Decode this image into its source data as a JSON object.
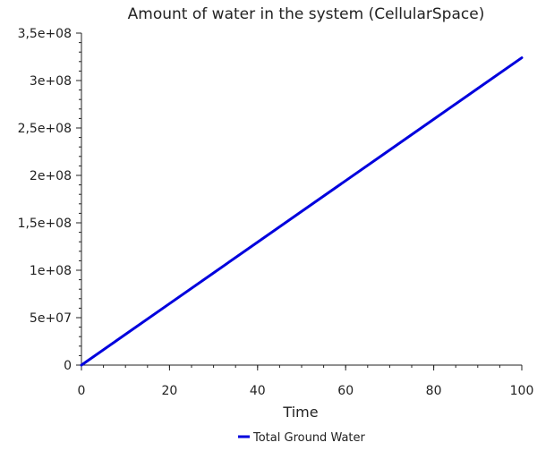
{
  "chart_data": {
    "type": "line",
    "title": "Amount of water in the system (CellularSpace)",
    "xlabel": "Time",
    "ylabel": "",
    "xlim": [
      0,
      100
    ],
    "ylim": [
      0,
      350000000
    ],
    "x_ticks": [
      0,
      20,
      40,
      60,
      80,
      100
    ],
    "x_tick_labels": [
      "0",
      "20",
      "40",
      "60",
      "80",
      "100"
    ],
    "x_minor_step": 5,
    "y_ticks": [
      0,
      50000000,
      100000000,
      150000000,
      200000000,
      250000000,
      300000000,
      350000000
    ],
    "y_tick_labels": [
      "0",
      "5e+07",
      "1e+08",
      "1,5e+08",
      "2e+08",
      "2,5e+08",
      "3e+08",
      "3,5e+08"
    ],
    "y_minor_step": 10000000,
    "grid": false,
    "legend_position": "bottom-center",
    "series": [
      {
        "name": "Total Ground Water",
        "color": "#0000dd",
        "x": [
          0,
          10,
          20,
          30,
          40,
          50,
          60,
          70,
          80,
          90,
          100
        ],
        "y": [
          0,
          32400000,
          64800000,
          97200000,
          129600000,
          162000000,
          194400000,
          226800000,
          259200000,
          291600000,
          324000000
        ]
      }
    ]
  }
}
